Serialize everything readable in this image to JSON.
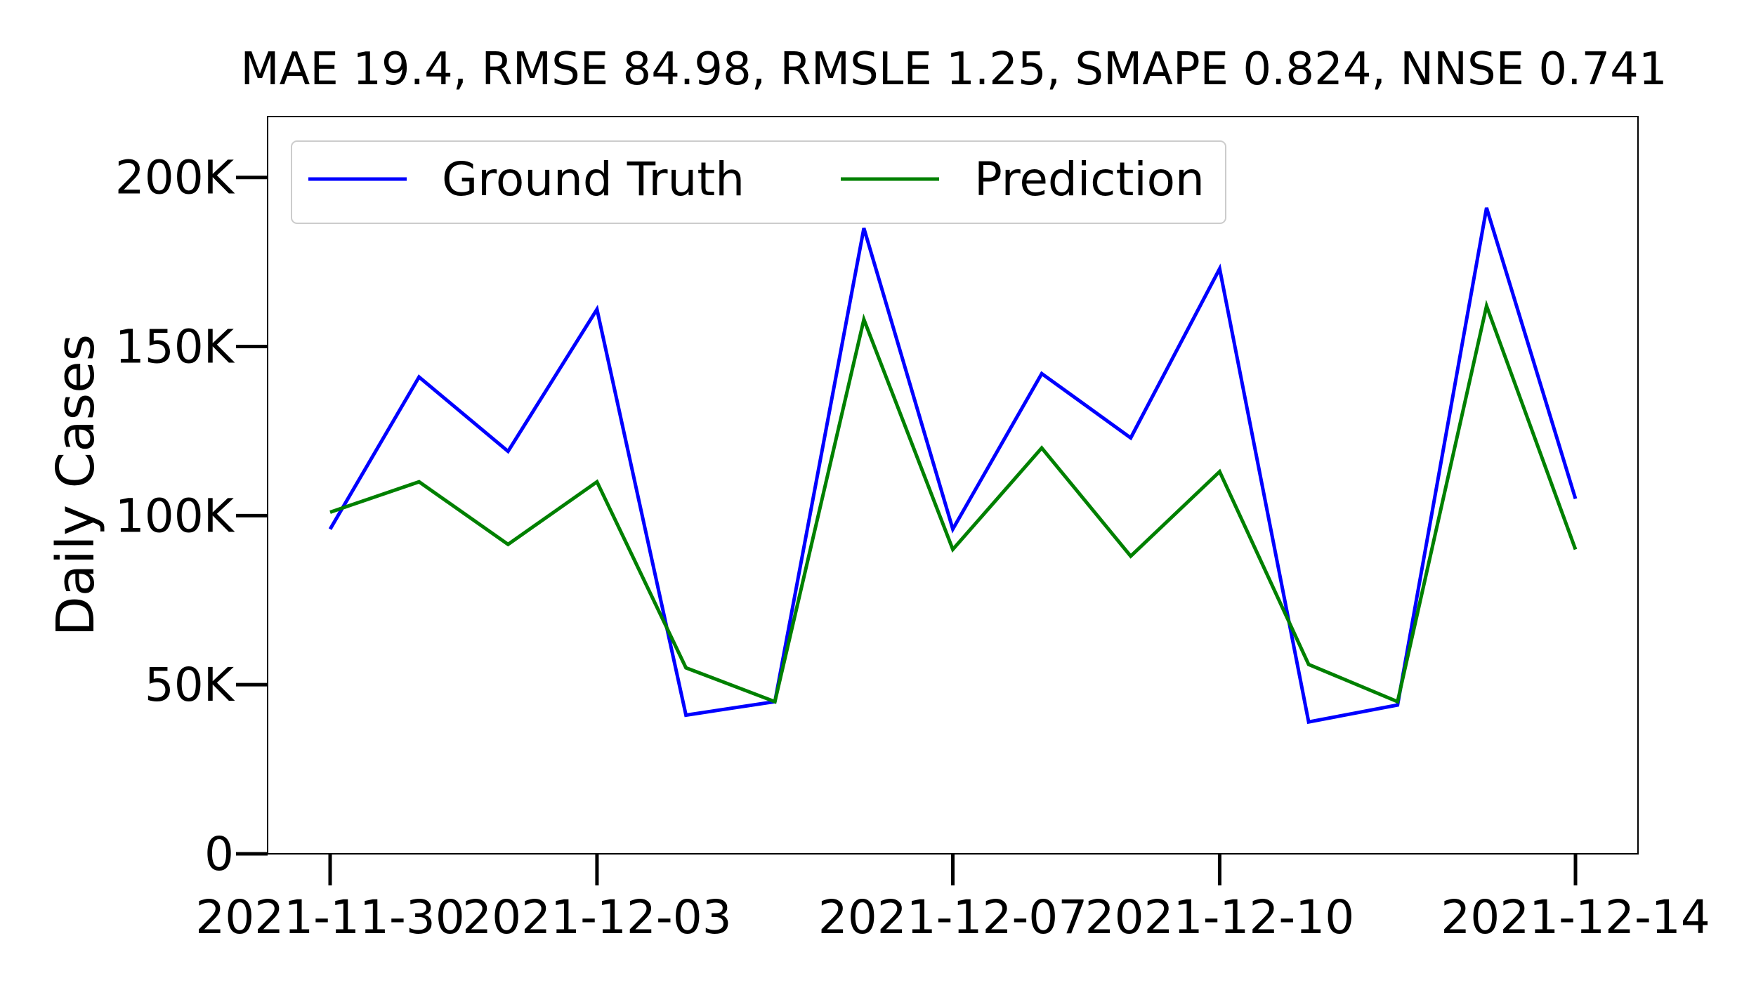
{
  "chart_data": {
    "type": "line",
    "title": "MAE 19.4, RMSE 84.98, RMSLE 1.25, SMAPE 0.824, NNSE 0.741",
    "xlabel": "",
    "ylabel": "Daily Cases",
    "x": [
      "2021-11-30",
      "2021-12-01",
      "2021-12-02",
      "2021-12-03",
      "2021-12-04",
      "2021-12-05",
      "2021-12-06",
      "2021-12-07",
      "2021-12-08",
      "2021-12-09",
      "2021-12-10",
      "2021-12-11",
      "2021-12-12",
      "2021-12-13",
      "2021-12-14"
    ],
    "x_ticks": [
      "2021-11-30",
      "2021-12-03",
      "2021-12-07",
      "2021-12-10",
      "2021-12-14"
    ],
    "y_ticks": [
      0,
      50000,
      100000,
      150000,
      200000
    ],
    "y_tick_labels": [
      "0",
      "50K",
      "100K",
      "150K",
      "200K"
    ],
    "ylim": [
      0,
      218000
    ],
    "legend_position": "top-left",
    "grid": false,
    "series": [
      {
        "name": "Ground Truth",
        "color": "#0000ff",
        "values": [
          96000,
          141000,
          119000,
          161000,
          41000,
          45000,
          185000,
          96000,
          142000,
          123000,
          173000,
          39000,
          44000,
          191000,
          105000
        ]
      },
      {
        "name": "Prediction",
        "color": "#008000",
        "values": [
          101000,
          110000,
          91500,
          110000,
          55000,
          45000,
          158000,
          90000,
          120000,
          88000,
          113000,
          56000,
          45000,
          162000,
          90000
        ]
      }
    ]
  }
}
